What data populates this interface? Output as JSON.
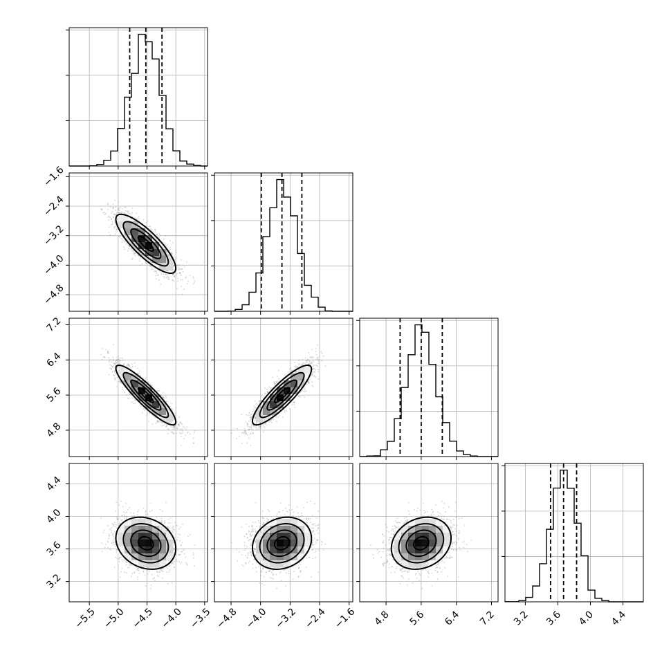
{
  "chart_data": {
    "type": "corner",
    "grid": true,
    "parameters": [
      {
        "mean": -4.52,
        "std": 0.26,
        "range": [
          -5.85,
          -3.45
        ],
        "quantiles": [
          -4.8,
          -4.52,
          -4.24
        ],
        "ticks": [
          -5.5,
          -5.0,
          -4.5,
          -4.0,
          -3.5
        ],
        "tick_labels": [
          "−5.5",
          "−5.0",
          "−4.5",
          "−4.0",
          "−3.5"
        ]
      },
      {
        "mean": -3.42,
        "std": 0.4,
        "range": [
          -5.25,
          -1.5
        ],
        "quantiles": [
          -3.98,
          -3.42,
          -2.88
        ],
        "ticks": [
          -4.8,
          -4.0,
          -3.2,
          -2.4,
          -1.6
        ],
        "tick_labels": [
          "−4.8",
          "−4.0",
          "−3.2",
          "−2.4",
          "−1.6"
        ]
      },
      {
        "mean": 5.6,
        "std": 0.34,
        "range": [
          4.2,
          7.35
        ],
        "quantiles": [
          5.12,
          5.6,
          6.08
        ],
        "ticks": [
          4.8,
          5.6,
          6.4,
          7.2
        ],
        "tick_labels": [
          "4.8",
          "5.6",
          "6.4",
          "7.2"
        ]
      },
      {
        "mean": 3.67,
        "std": 0.16,
        "range": [
          2.95,
          4.65
        ],
        "quantiles": [
          3.51,
          3.67,
          3.83
        ],
        "ticks": [
          3.2,
          3.6,
          4.0,
          4.4
        ],
        "tick_labels": [
          "3.2",
          "3.6",
          "4.0",
          "4.4"
        ]
      }
    ],
    "correlations": [
      [
        1,
        -0.83,
        -0.9,
        -0.2
      ],
      [
        -0.83,
        1,
        0.87,
        0.18
      ],
      [
        -0.9,
        0.87,
        1,
        0.2
      ],
      [
        -0.2,
        0.18,
        0.2,
        1
      ]
    ],
    "histogram_bins": 20,
    "contour_levels_sigma": [
      0.5,
      1.0,
      1.5,
      2.0
    ],
    "hist_y_ticks": 3
  }
}
